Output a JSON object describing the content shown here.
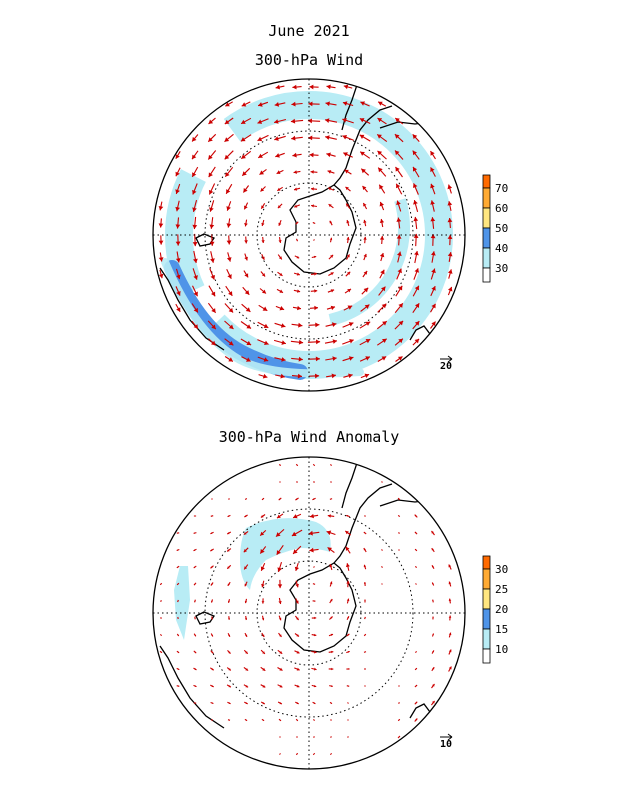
{
  "figure": {
    "title_line1": "June 2021",
    "title_line2": "300-hPa Wind",
    "title_anomaly": "300-hPa Wind Anomaly"
  },
  "top_panel": {
    "colorbar_labels": [
      "30",
      "40",
      "50",
      "60",
      "70"
    ],
    "colorbar_colors": [
      "#ffffff",
      "#b8ecf5",
      "#4f94e8",
      "#ffe680",
      "#ffaa33",
      "#ff6a00"
    ],
    "reference_vector_label": "20",
    "jet_core_direction": "counter-clockwise circumpolar westerlies"
  },
  "bottom_panel": {
    "colorbar_labels": [
      "10",
      "15",
      "20",
      "25",
      "30"
    ],
    "colorbar_colors": [
      "#ffffff",
      "#b8ecf5",
      "#4f94e8",
      "#ffe680",
      "#ffaa33",
      "#ff6a00"
    ],
    "reference_vector_label": "10"
  },
  "colors": {
    "arrow": "#cc0000",
    "coast": "#000000",
    "grid": "#000000"
  }
}
